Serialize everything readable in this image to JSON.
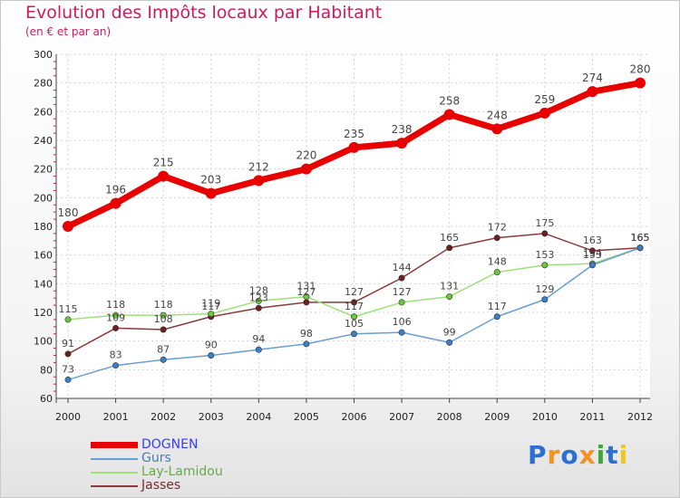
{
  "title": "Evolution des Impôts locaux par Habitant",
  "subtitle": "(en € et par an)",
  "brand": {
    "letters": [
      "P",
      "r",
      "o",
      "x",
      "i",
      "t",
      "i"
    ],
    "colors": [
      "#2b6fd4",
      "#f29322",
      "#2b6fd4",
      "#f29322",
      "#3da83d",
      "#2b6fd4",
      "#f2c41e"
    ]
  },
  "chart_data": {
    "type": "line",
    "title": "Evolution des Impôts locaux par Habitant",
    "ylabel": "(en € et par an)",
    "xlabel": "",
    "x": [
      "2000",
      "2001",
      "2002",
      "2003",
      "2004",
      "2005",
      "2006",
      "2007",
      "2008",
      "2009",
      "2010",
      "2011",
      "2012"
    ],
    "ylim": [
      60,
      300
    ],
    "yticks": [
      "60",
      "80",
      "100",
      "120",
      "140",
      "160",
      "180",
      "200",
      "220",
      "240",
      "260",
      "280",
      "300"
    ],
    "grid": true,
    "legend": "bottom-left",
    "series": [
      {
        "name": "DOGNEN",
        "color": "#e80000",
        "marker": "#e80000",
        "labelColor": "#3a3aff",
        "highlight": true,
        "values": [
          180,
          196,
          215,
          203,
          212,
          220,
          235,
          238,
          258,
          248,
          259,
          274,
          280
        ],
        "labels": [
          "180",
          "196",
          "215",
          "203",
          "212",
          "220",
          "235",
          "238",
          "258",
          "248",
          "259",
          "274",
          "280"
        ]
      },
      {
        "name": "Gurs",
        "color": "#6a9fd0",
        "marker": "#3a7fc8",
        "labelColor": "#4d7ab5",
        "highlight": false,
        "values": [
          73,
          83,
          87,
          90,
          94,
          98,
          105,
          106,
          99,
          117,
          129,
          153,
          165
        ],
        "labels": [
          "73",
          "83",
          "87",
          "90",
          "94",
          "98",
          "105",
          "106",
          "99",
          "117",
          "129",
          "153",
          "165"
        ]
      },
      {
        "name": "Lay-Lamidou",
        "color": "#9ee07a",
        "marker": "#6cc540",
        "labelColor": "#6aa84f",
        "highlight": false,
        "values": [
          115,
          118,
          118,
          119,
          128,
          131,
          117,
          127,
          131,
          148,
          153,
          154,
          165
        ],
        "labels": [
          "115",
          "118",
          "118",
          "119",
          "128",
          "131",
          "117",
          "127",
          "131",
          "148",
          "153",
          "154",
          "165"
        ]
      },
      {
        "name": "Jasses",
        "color": "#8a3a3a",
        "marker": "#6b1f1f",
        "labelColor": "#7a2a2a",
        "highlight": false,
        "values": [
          91,
          109,
          108,
          117,
          123,
          127,
          127,
          144,
          165,
          172,
          175,
          163,
          165
        ],
        "labels": [
          "91",
          "109",
          "108",
          "117",
          "123",
          "127",
          "127",
          "144",
          "165",
          "172",
          "175",
          "163",
          "165"
        ]
      }
    ]
  }
}
